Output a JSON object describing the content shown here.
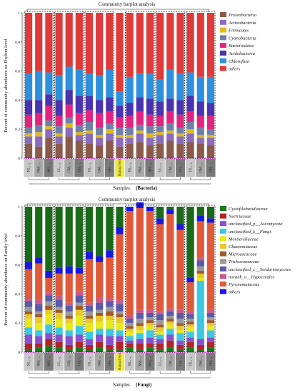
{
  "chart_data": [
    {
      "type": "bar",
      "stacked": true,
      "title": "Community barplot analysis",
      "ylabel": "Percent of community abundance on Phylum level",
      "xlabel": "Samples",
      "caption": "(Bacteria)",
      "ylim": [
        0,
        1
      ],
      "yticks": [
        "0",
        "0.2",
        "0.4",
        "0.6",
        "0.8",
        "1"
      ],
      "categories": [
        "NL₁₋₀",
        "NM₁₋₀",
        "NH₁₋₀",
        "CL₁₋₀",
        "CM₁₋₀",
        "CH₁₋₀",
        "OL₁₋₀",
        "OM₁₋₀",
        "OH₁₋₀",
        "Natural Soil",
        "NL₃₋₀",
        "NM₃₋₀",
        "NH₃₋₀",
        "CL₃₋₀",
        "CM₃₋₀",
        "CH₃₋₀",
        "OL₃₋₀",
        "OM₃₋₀",
        "OH₃₋₀"
      ],
      "series": [
        {
          "name": "Proteobacteria",
          "color": "#8c5a4a",
          "values": [
            0.1,
            0.08,
            0.14,
            0.1,
            0.15,
            0.12,
            0.1,
            0.09,
            0.12,
            0.08,
            0.1,
            0.11,
            0.09,
            0.1,
            0.12,
            0.1,
            0.11,
            0.1,
            0.09
          ]
        },
        {
          "name": "Actinobacteria",
          "color": "#8a6bbd",
          "values": [
            0.05,
            0.07,
            0.06,
            0.05,
            0.06,
            0.04,
            0.07,
            0.05,
            0.05,
            0.06,
            0.04,
            0.06,
            0.05,
            0.06,
            0.05,
            0.05,
            0.06,
            0.04,
            0.05
          ]
        },
        {
          "name": "Firmicutes",
          "color": "#e0b81f",
          "values": [
            0.02,
            0.03,
            0.02,
            0.02,
            0.03,
            0.02,
            0.02,
            0.02,
            0.03,
            0.02,
            0.02,
            0.02,
            0.03,
            0.02,
            0.02,
            0.02,
            0.03,
            0.02,
            0.02
          ]
        },
        {
          "name": "Cyanobacteria",
          "color": "#6f7fa8",
          "values": [
            0.04,
            0.05,
            0.04,
            0.05,
            0.04,
            0.05,
            0.06,
            0.05,
            0.04,
            0.05,
            0.05,
            0.04,
            0.05,
            0.04,
            0.05,
            0.04,
            0.05,
            0.05,
            0.04
          ]
        },
        {
          "name": "Bacteroidetes",
          "color": "#e0247f",
          "values": [
            0.09,
            0.08,
            0.1,
            0.07,
            0.09,
            0.08,
            0.08,
            0.1,
            0.08,
            0.07,
            0.08,
            0.09,
            0.08,
            0.07,
            0.08,
            0.09,
            0.07,
            0.08,
            0.09
          ]
        },
        {
          "name": "Acidobacteria",
          "color": "#4a33b0",
          "values": [
            0.1,
            0.09,
            0.08,
            0.11,
            0.1,
            0.12,
            0.1,
            0.09,
            0.1,
            0.08,
            0.09,
            0.1,
            0.11,
            0.1,
            0.09,
            0.1,
            0.11,
            0.1,
            0.09
          ]
        },
        {
          "name": "Chloroflexi",
          "color": "#2e8fdc",
          "values": [
            0.18,
            0.2,
            0.15,
            0.17,
            0.16,
            0.18,
            0.15,
            0.17,
            0.19,
            0.1,
            0.18,
            0.16,
            0.17,
            0.15,
            0.2,
            0.18,
            0.16,
            0.17,
            0.18
          ]
        },
        {
          "name": "others",
          "color": "#e03a3a",
          "values": [
            0.42,
            0.4,
            0.41,
            0.43,
            0.37,
            0.39,
            0.42,
            0.43,
            0.39,
            0.54,
            0.44,
            0.42,
            0.42,
            0.46,
            0.39,
            0.42,
            0.41,
            0.44,
            0.44
          ]
        }
      ],
      "top_band": {
        "name": "others",
        "color": "#1d7a1d"
      }
    },
    {
      "type": "bar",
      "stacked": true,
      "title": "Community barplot analysis",
      "ylabel": "Percent of community abundance on Family level",
      "xlabel": "Samples",
      "caption": "(Fungi)",
      "ylim": [
        0,
        1
      ],
      "yticks": [
        "0",
        "0.2",
        "0.4",
        "0.6",
        "0.8",
        "1"
      ],
      "categories": [
        "NL₁₋₀",
        "NM₁₋₀",
        "NH₁₋₀",
        "CL₁₋₀",
        "CM₁₋₀",
        "CH₁₋₀",
        "OL₁₋₀",
        "OM₁₋₀",
        "OH₁₋₀",
        "Natural Soil",
        "NL₃₋₀",
        "NM₃₋₀",
        "NH₃₋₀",
        "CL₃₋₀",
        "CM₃₋₀",
        "CH₃₋₀",
        "OL₃₋₀",
        "OM₃₋₀",
        "OH₃₋₀"
      ],
      "series": [
        {
          "name": "Cystofilobasidiaceae",
          "color": "#1a7a1a",
          "values": [
            0.02,
            0.03,
            0.04,
            0.03,
            0.02,
            0.03,
            0.02,
            0.03,
            0.02,
            0.02,
            0.03,
            0.02,
            0.03,
            0.02,
            0.03,
            0.02,
            0.03,
            0.02,
            0.03
          ]
        },
        {
          "name": "Nectriaceae",
          "color": "#b0242a",
          "values": [
            0.04,
            0.03,
            0.05,
            0.04,
            0.03,
            0.04,
            0.03,
            0.04,
            0.03,
            0.05,
            0.03,
            0.04,
            0.03,
            0.04,
            0.05,
            0.03,
            0.04,
            0.03,
            0.04
          ]
        },
        {
          "name": "unclassified_p__Ascomycota",
          "color": "#8a4fd0",
          "values": [
            0.06,
            0.05,
            0.04,
            0.05,
            0.06,
            0.05,
            0.04,
            0.05,
            0.06,
            0.04,
            0.02,
            0.03,
            0.04,
            0.03,
            0.04,
            0.03,
            0.03,
            0.04,
            0.03
          ]
        },
        {
          "name": "unclassified_k__Fungi",
          "color": "#3cc8e0",
          "values": [
            0.05,
            0.04,
            0.06,
            0.05,
            0.04,
            0.06,
            0.05,
            0.04,
            0.05,
            0.04,
            0.03,
            0.04,
            0.05,
            0.03,
            0.04,
            0.05,
            0.04,
            0.4,
            0.05
          ]
        },
        {
          "name": "Mortierellaceae",
          "color": "#e8e81a",
          "values": [
            0.06,
            0.05,
            0.07,
            0.06,
            0.05,
            0.07,
            0.06,
            0.05,
            0.06,
            0.05,
            0.03,
            0.02,
            0.03,
            0.02,
            0.03,
            0.02,
            0.03,
            0.02,
            0.03
          ]
        },
        {
          "name": "Chaetomiaceae",
          "color": "#e8c82a",
          "values": [
            0.03,
            0.04,
            0.03,
            0.04,
            0.03,
            0.04,
            0.03,
            0.04,
            0.03,
            0.04,
            0.02,
            0.03,
            0.02,
            0.03,
            0.02,
            0.03,
            0.02,
            0.03,
            0.02
          ]
        },
        {
          "name": "Microascaceae",
          "color": "#a05a2a",
          "values": [
            0.02,
            0.02,
            0.03,
            0.02,
            0.02,
            0.03,
            0.02,
            0.02,
            0.03,
            0.02,
            0.02,
            0.02,
            0.02,
            0.02,
            0.02,
            0.02,
            0.02,
            0.02,
            0.02
          ]
        },
        {
          "name": "Trichocomaceae",
          "color": "#9a9a9a",
          "values": [
            0.03,
            0.02,
            0.03,
            0.02,
            0.03,
            0.02,
            0.03,
            0.02,
            0.03,
            0.02,
            0.02,
            0.03,
            0.02,
            0.03,
            0.02,
            0.03,
            0.02,
            0.03,
            0.02
          ]
        },
        {
          "name": "unclassified_c__Sordariomycetes",
          "color": "#5a5aa8",
          "values": [
            0.04,
            0.05,
            0.04,
            0.05,
            0.04,
            0.05,
            0.04,
            0.05,
            0.04,
            0.05,
            0.03,
            0.04,
            0.03,
            0.04,
            0.03,
            0.04,
            0.03,
            0.04,
            0.03
          ]
        },
        {
          "name": "norank_o__Hypocreales",
          "color": "#c85a8a",
          "values": [
            0.02,
            0.03,
            0.02,
            0.03,
            0.02,
            0.03,
            0.02,
            0.03,
            0.02,
            0.03,
            0.02,
            0.02,
            0.02,
            0.02,
            0.02,
            0.02,
            0.02,
            0.02,
            0.02
          ]
        },
        {
          "name": "Pyronemataceae",
          "color": "#e05a3a",
          "values": [
            0.2,
            0.25,
            0.1,
            0.15,
            0.2,
            0.12,
            0.3,
            0.25,
            0.28,
            0.45,
            0.72,
            0.7,
            0.68,
            0.6,
            0.65,
            0.55,
            0.2,
            0.25,
            0.6
          ]
        },
        {
          "name": "others",
          "color": "#1818e0",
          "values": [
            0.05,
            0.04,
            0.05,
            0.04,
            0.05,
            0.04,
            0.05,
            0.04,
            0.05,
            0.05,
            0.03,
            0.04,
            0.03,
            0.04,
            0.03,
            0.04,
            0.03,
            0.04,
            0.03
          ]
        }
      ],
      "top_band": {
        "name": "others",
        "color": "#1a6a1a"
      }
    }
  ]
}
